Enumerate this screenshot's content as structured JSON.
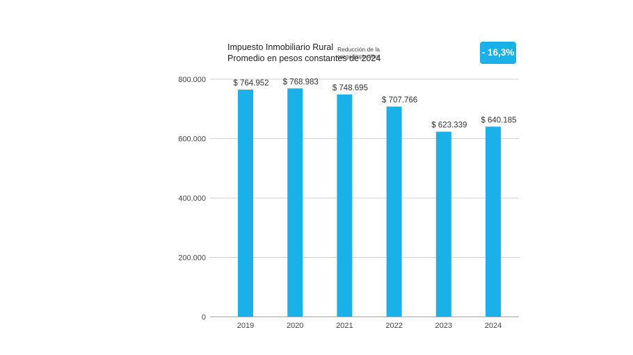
{
  "chart_data": {
    "type": "bar",
    "title": "Impuesto Inmobiliario Rural",
    "subtitle": "Promedio en pesos constantes de 2024",
    "categories": [
      "2019",
      "2020",
      "2021",
      "2022",
      "2023",
      "2024"
    ],
    "values": [
      764952,
      768983,
      748695,
      707766,
      623339,
      640185
    ],
    "data_labels": [
      "$ 764.952",
      "$ 768.983",
      "$ 748.695",
      "$ 707.766",
      "$ 623.339",
      "$ 640.185"
    ],
    "ylim": [
      0,
      800000
    ],
    "yticks": [
      0,
      200000,
      400000,
      600000,
      800000
    ],
    "ytick_labels": [
      "0",
      "200.000",
      "400.000",
      "600.000",
      "800.000"
    ],
    "grid": true,
    "bar_color": "#1ab0e8",
    "xlabel": "",
    "ylabel": ""
  },
  "callout": {
    "label_line1": "Reducción de la",
    "label_line2": "carga impositiva",
    "value": "- 16,3%",
    "color": "#1ab0e8"
  }
}
